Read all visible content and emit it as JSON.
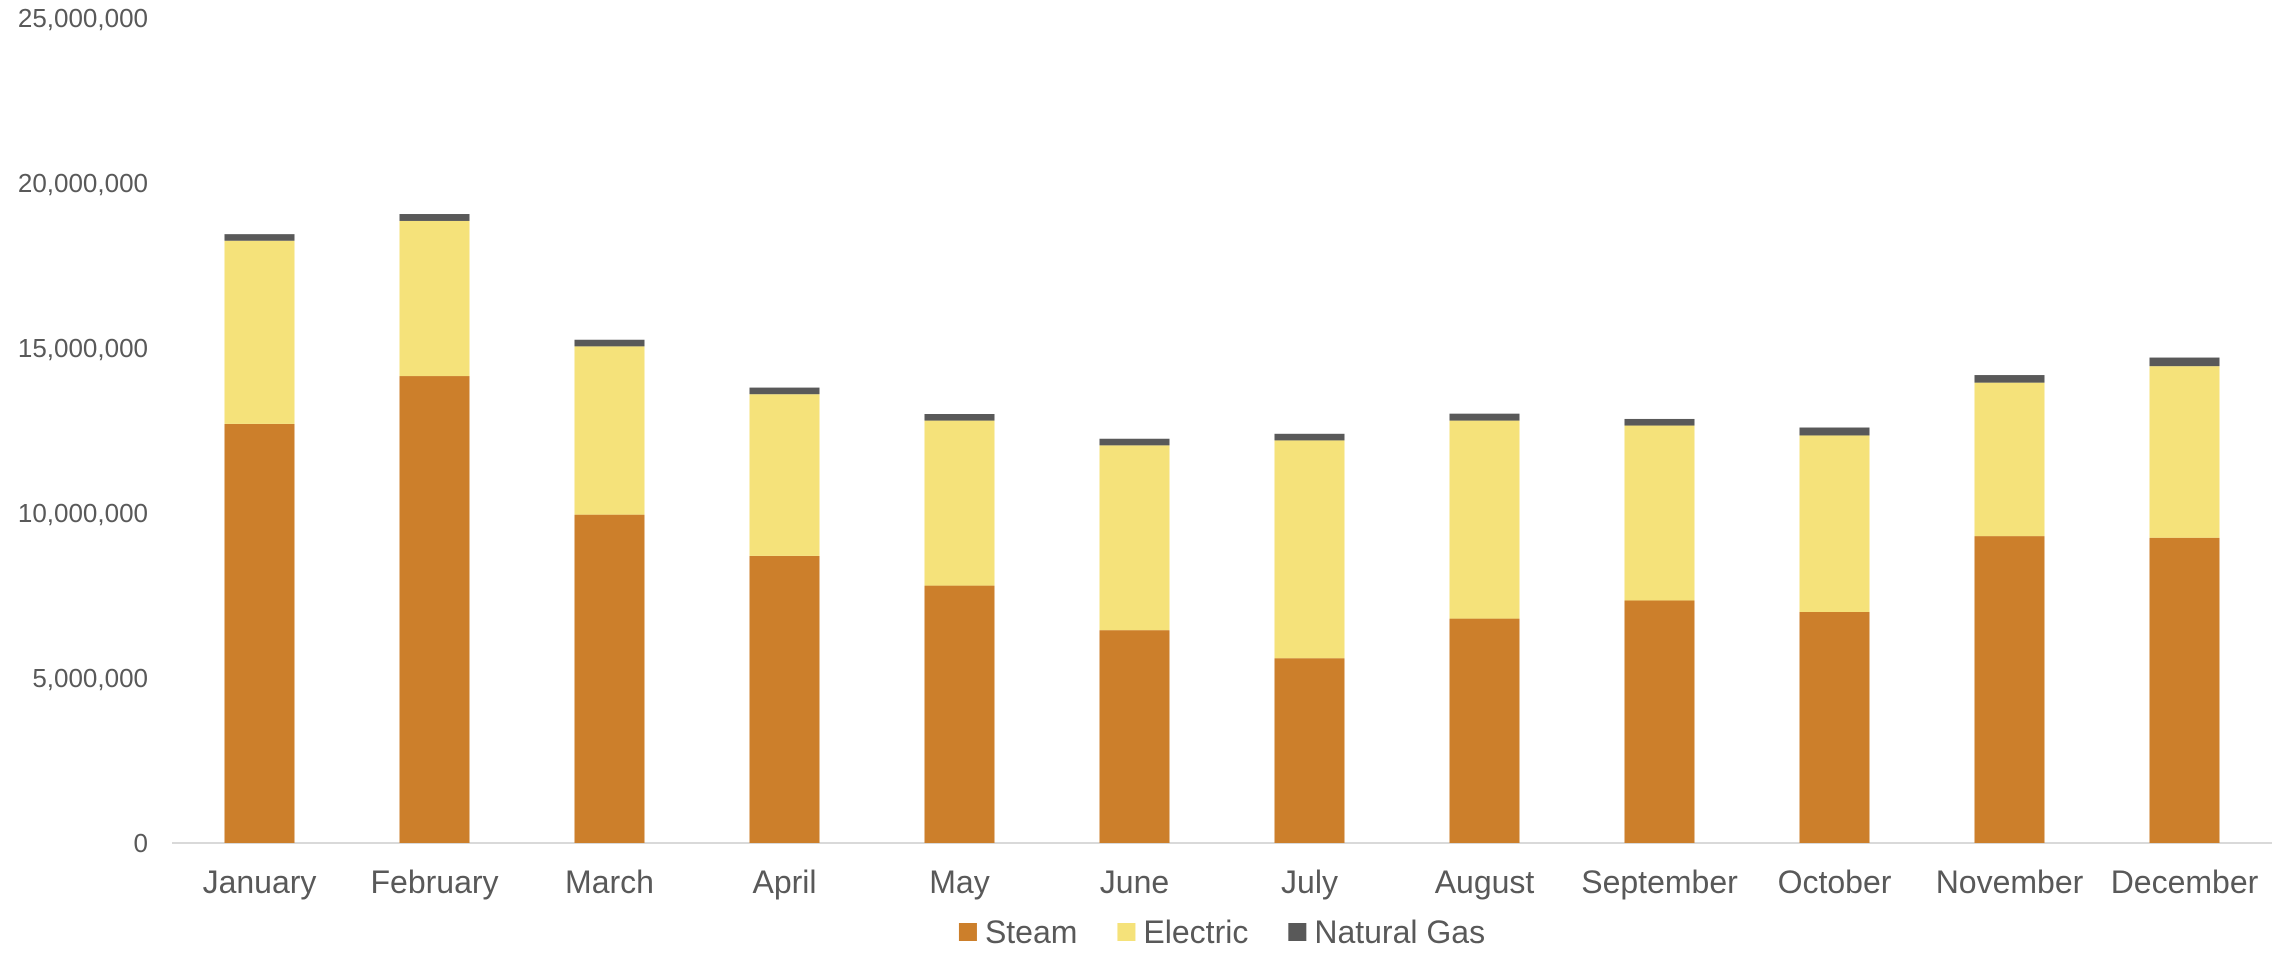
{
  "chart_data": {
    "type": "bar",
    "stacked": true,
    "categories": [
      "January",
      "February",
      "March",
      "April",
      "May",
      "June",
      "July",
      "August",
      "September",
      "October",
      "November",
      "December"
    ],
    "series": [
      {
        "name": "Steam",
        "color": "#CC7F2B",
        "values": [
          12700000,
          14150000,
          9950000,
          8700000,
          7800000,
          6450000,
          5600000,
          6800000,
          7350000,
          7000000,
          9300000,
          9250000
        ]
      },
      {
        "name": "Electric",
        "color": "#F5E27A",
        "values": [
          5550000,
          4700000,
          5100000,
          4900000,
          5000000,
          5600000,
          6600000,
          6000000,
          5300000,
          5350000,
          4650000,
          5200000
        ]
      },
      {
        "name": "Natural Gas",
        "color": "#595959",
        "values": [
          200000,
          210000,
          200000,
          200000,
          200000,
          200000,
          200000,
          210000,
          200000,
          240000,
          230000,
          260000
        ]
      }
    ],
    "ylim": [
      0,
      25000000
    ],
    "yticks": [
      "0",
      "5,000,000",
      "10,000,000",
      "15,000,000",
      "20,000,000",
      "25,000,000"
    ],
    "ytick_values": [
      0,
      5000000,
      10000000,
      15000000,
      20000000,
      25000000
    ],
    "grid": false,
    "legend": "bottom",
    "title": "",
    "xlabel": "",
    "ylabel": ""
  }
}
